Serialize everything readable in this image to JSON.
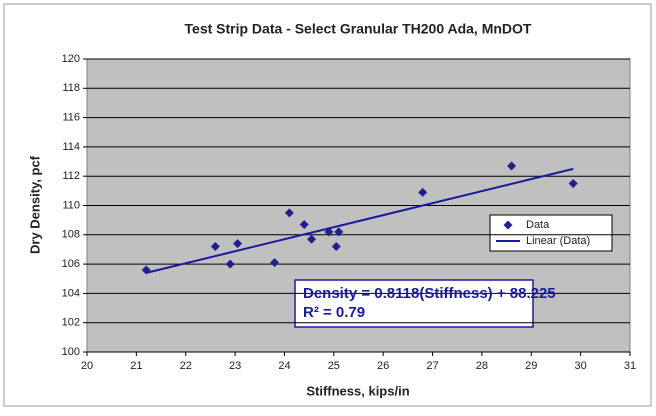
{
  "chart_data": {
    "type": "scatter",
    "title": "Test Strip Data - Select Granular TH200 Ada, MnDOT",
    "x_label": "Stiffness, kips/in",
    "y_label": "Dry Density, pcf",
    "xlim": [
      20,
      31
    ],
    "xticks": [
      20,
      21,
      22,
      23,
      24,
      25,
      26,
      27,
      28,
      29,
      30,
      31
    ],
    "ylim": [
      100,
      120
    ],
    "yticks": [
      100,
      102,
      104,
      106,
      108,
      110,
      112,
      114,
      116,
      118,
      120
    ],
    "grid": true,
    "legend": "right",
    "series": [
      {
        "name": "Data",
        "style": "markers",
        "color": "#1f1f8f",
        "x": [
          21.2,
          22.6,
          22.9,
          23.05,
          23.8,
          24.1,
          24.4,
          24.55,
          24.9,
          25.05,
          25.1,
          26.8,
          28.6,
          29.85
        ],
        "values": [
          105.6,
          107.2,
          106.0,
          107.4,
          106.1,
          109.5,
          108.7,
          107.7,
          108.2,
          107.2,
          108.2,
          110.9,
          112.7,
          111.5
        ]
      },
      {
        "name": "Linear (Data)",
        "style": "line",
        "color": "#1a1aa0",
        "x": [
          21.2,
          29.85
        ],
        "values": [
          105.4,
          112.5
        ]
      }
    ],
    "annotations": [
      "Density = 0.8118(Stiffness) + 88.225",
      "R² = 0.79"
    ]
  }
}
